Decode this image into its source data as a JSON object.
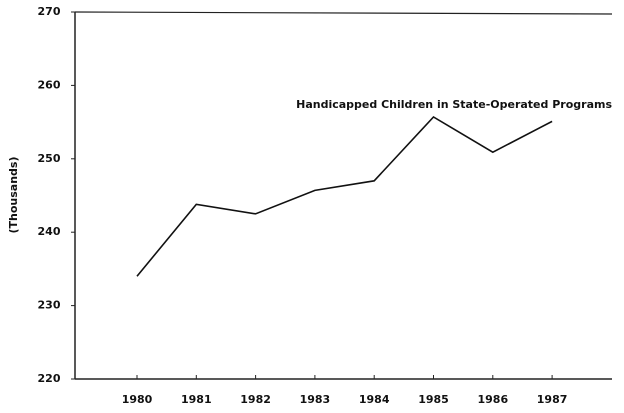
{
  "chart_data": {
    "type": "line",
    "y_label": "(Thousands)",
    "categories": [
      "1980",
      "1981",
      "1982",
      "1983",
      "1984",
      "1985",
      "1986",
      "1987"
    ],
    "series": [
      {
        "name": "Handicapped Children in State-Operated Programs",
        "color": "#111111",
        "values": [
          234.0,
          243.8,
          242.5,
          245.7,
          247.0,
          255.7,
          250.9,
          255.1
        ]
      }
    ],
    "ylim": [
      220,
      270
    ],
    "yticks": [
      220,
      230,
      240,
      250,
      260,
      270
    ],
    "grid": false
  }
}
